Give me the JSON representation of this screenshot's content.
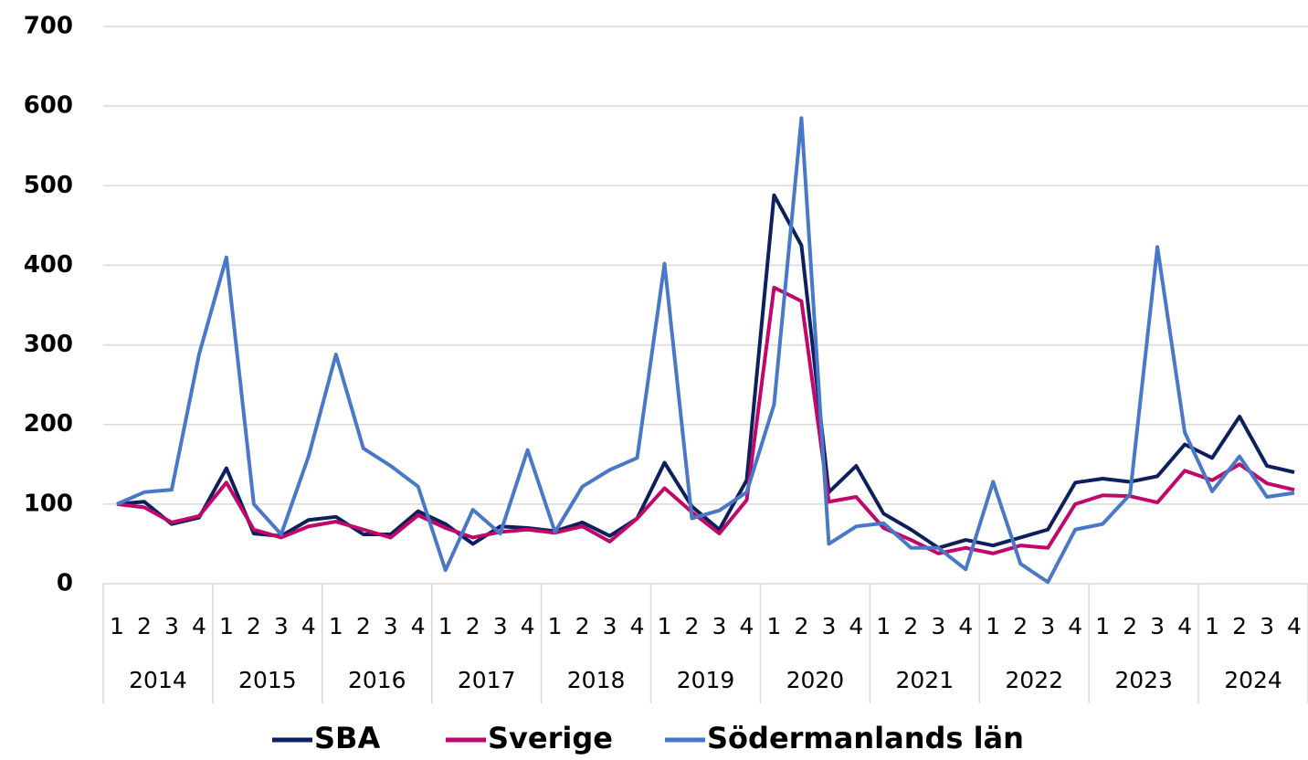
{
  "chart_data": {
    "type": "line",
    "categories": [
      "1",
      "2",
      "3",
      "4",
      "1",
      "2",
      "3",
      "4",
      "1",
      "2",
      "3",
      "4",
      "1",
      "2",
      "3",
      "4",
      "1",
      "2",
      "3",
      "4",
      "1",
      "2",
      "3",
      "4",
      "1",
      "2",
      "3",
      "4",
      "1",
      "2",
      "3",
      "4",
      "1",
      "2",
      "3",
      "4",
      "1",
      "2",
      "3",
      "4",
      "1",
      "2",
      "3",
      "4"
    ],
    "groups": [
      "2014",
      "2015",
      "2016",
      "2017",
      "2018",
      "2019",
      "2020",
      "2021",
      "2022",
      "2023",
      "2024"
    ],
    "series": [
      {
        "name": "SBA",
        "color": "#0d1f5c",
        "values": [
          100,
          103,
          75,
          83,
          145,
          63,
          60,
          80,
          84,
          62,
          62,
          91,
          75,
          50,
          72,
          70,
          66,
          77,
          60,
          82,
          152,
          97,
          68,
          130,
          488,
          425,
          115,
          148,
          88,
          68,
          45,
          55,
          48,
          58,
          68,
          127,
          132,
          128,
          135,
          175,
          158,
          210,
          148,
          140
        ]
      },
      {
        "name": "Sverige",
        "color": "#c0076a",
        "values": [
          100,
          96,
          77,
          85,
          127,
          68,
          58,
          72,
          78,
          68,
          58,
          86,
          70,
          58,
          65,
          68,
          64,
          72,
          53,
          82,
          120,
          90,
          63,
          105,
          372,
          355,
          103,
          109,
          70,
          55,
          38,
          45,
          38,
          48,
          45,
          100,
          111,
          110,
          102,
          142,
          130,
          150,
          126,
          118
        ]
      },
      {
        "name": "Södermanlands län",
        "color": "#4a78c8",
        "values": [
          100,
          115,
          118,
          288,
          410,
          100,
          62,
          160,
          288,
          170,
          148,
          122,
          17,
          93,
          63,
          168,
          65,
          122,
          143,
          158,
          402,
          82,
          92,
          115,
          225,
          585,
          50,
          72,
          76,
          45,
          45,
          18,
          128,
          25,
          2,
          68,
          75,
          112,
          423,
          190,
          116,
          160,
          109,
          114
        ]
      }
    ],
    "ylim": [
      0,
      700
    ],
    "yticks": [
      0,
      100,
      200,
      300,
      400,
      500,
      600,
      700
    ],
    "grid": true,
    "legend": "bottom"
  }
}
